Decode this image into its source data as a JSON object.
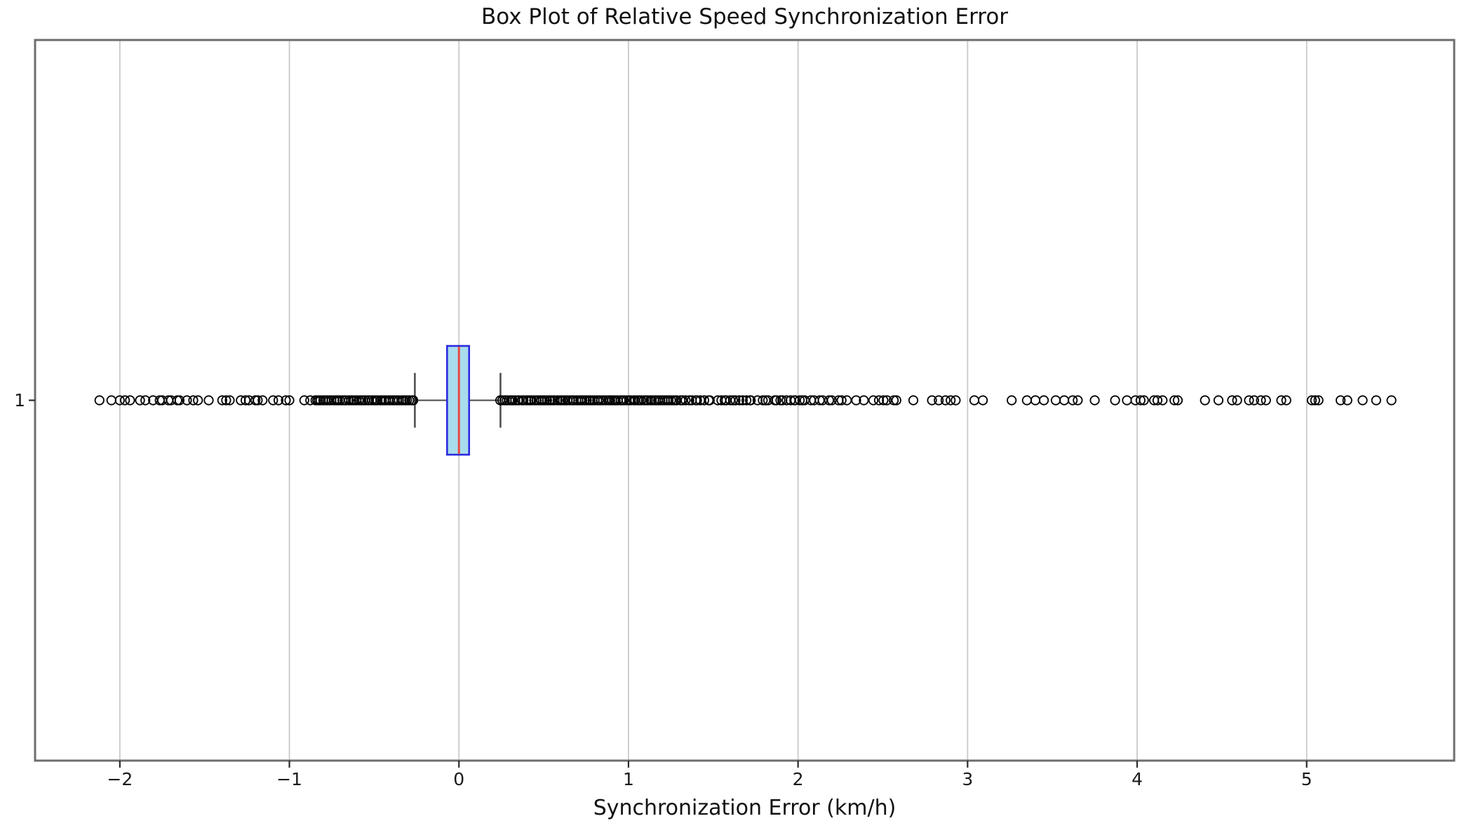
{
  "chart_data": {
    "type": "boxplot",
    "orientation": "horizontal",
    "title": "Box Plot of Relative Speed Synchronization Error",
    "xlabel": "Synchronization Error (km/h)",
    "ylabel": "",
    "y_category_label": "1",
    "x_tick_labels": [
      "−2",
      "−1",
      "0",
      "1",
      "2",
      "3",
      "4",
      "5"
    ],
    "x_tick_values": [
      -2,
      -1,
      0,
      1,
      2,
      3,
      4,
      5
    ],
    "xlim": [
      -2.5,
      5.87
    ],
    "grid": "vertical-light-gray-full-height",
    "legend": "none",
    "box_stats": {
      "q1": -0.07,
      "median": 0.0,
      "q3": 0.06,
      "whisker_low": -0.26,
      "whisker_high": 0.245
    },
    "outliers": {
      "left_sparse": [
        -2.12,
        -2.05,
        -2.0,
        -1.97,
        -1.94
      ],
      "right_sparse": [
        2.58,
        2.68,
        2.79,
        2.83,
        2.87,
        2.9,
        2.93,
        3.04,
        3.09,
        3.26,
        3.35,
        3.4,
        3.45,
        3.52,
        3.57,
        3.62,
        3.65,
        3.75,
        3.87,
        3.94,
        3.99,
        4.02,
        4.04,
        4.1,
        4.12,
        4.15,
        4.22,
        4.24,
        4.4,
        4.48,
        4.56,
        4.59,
        4.66,
        4.69,
        4.73,
        4.76,
        4.85,
        4.88,
        5.03,
        5.05,
        5.07,
        5.2,
        5.24,
        5.33,
        5.41,
        5.5
      ],
      "dense_bands": [
        {
          "from": -1.88,
          "to": -0.85,
          "density": "clustered"
        },
        {
          "from": -0.85,
          "to": -0.26,
          "density": "solid"
        },
        {
          "from": 0.245,
          "to": 1.3,
          "density": "solid"
        },
        {
          "from": 1.3,
          "to": 2.02,
          "density": "heavy"
        },
        {
          "from": 2.02,
          "to": 2.56,
          "density": "clustered"
        }
      ]
    },
    "colors": {
      "box_fill": "#a9dcec",
      "box_edge": "#2a2ae0",
      "median": "#e84840",
      "whisker": "#4a4a4a",
      "cap": "#4a4a4a",
      "flier_edge": "#000000",
      "grid": "#c9c9c9",
      "spine": "#6e6e6e",
      "tick": "#2b2b2b",
      "background": "#ffffff"
    }
  }
}
